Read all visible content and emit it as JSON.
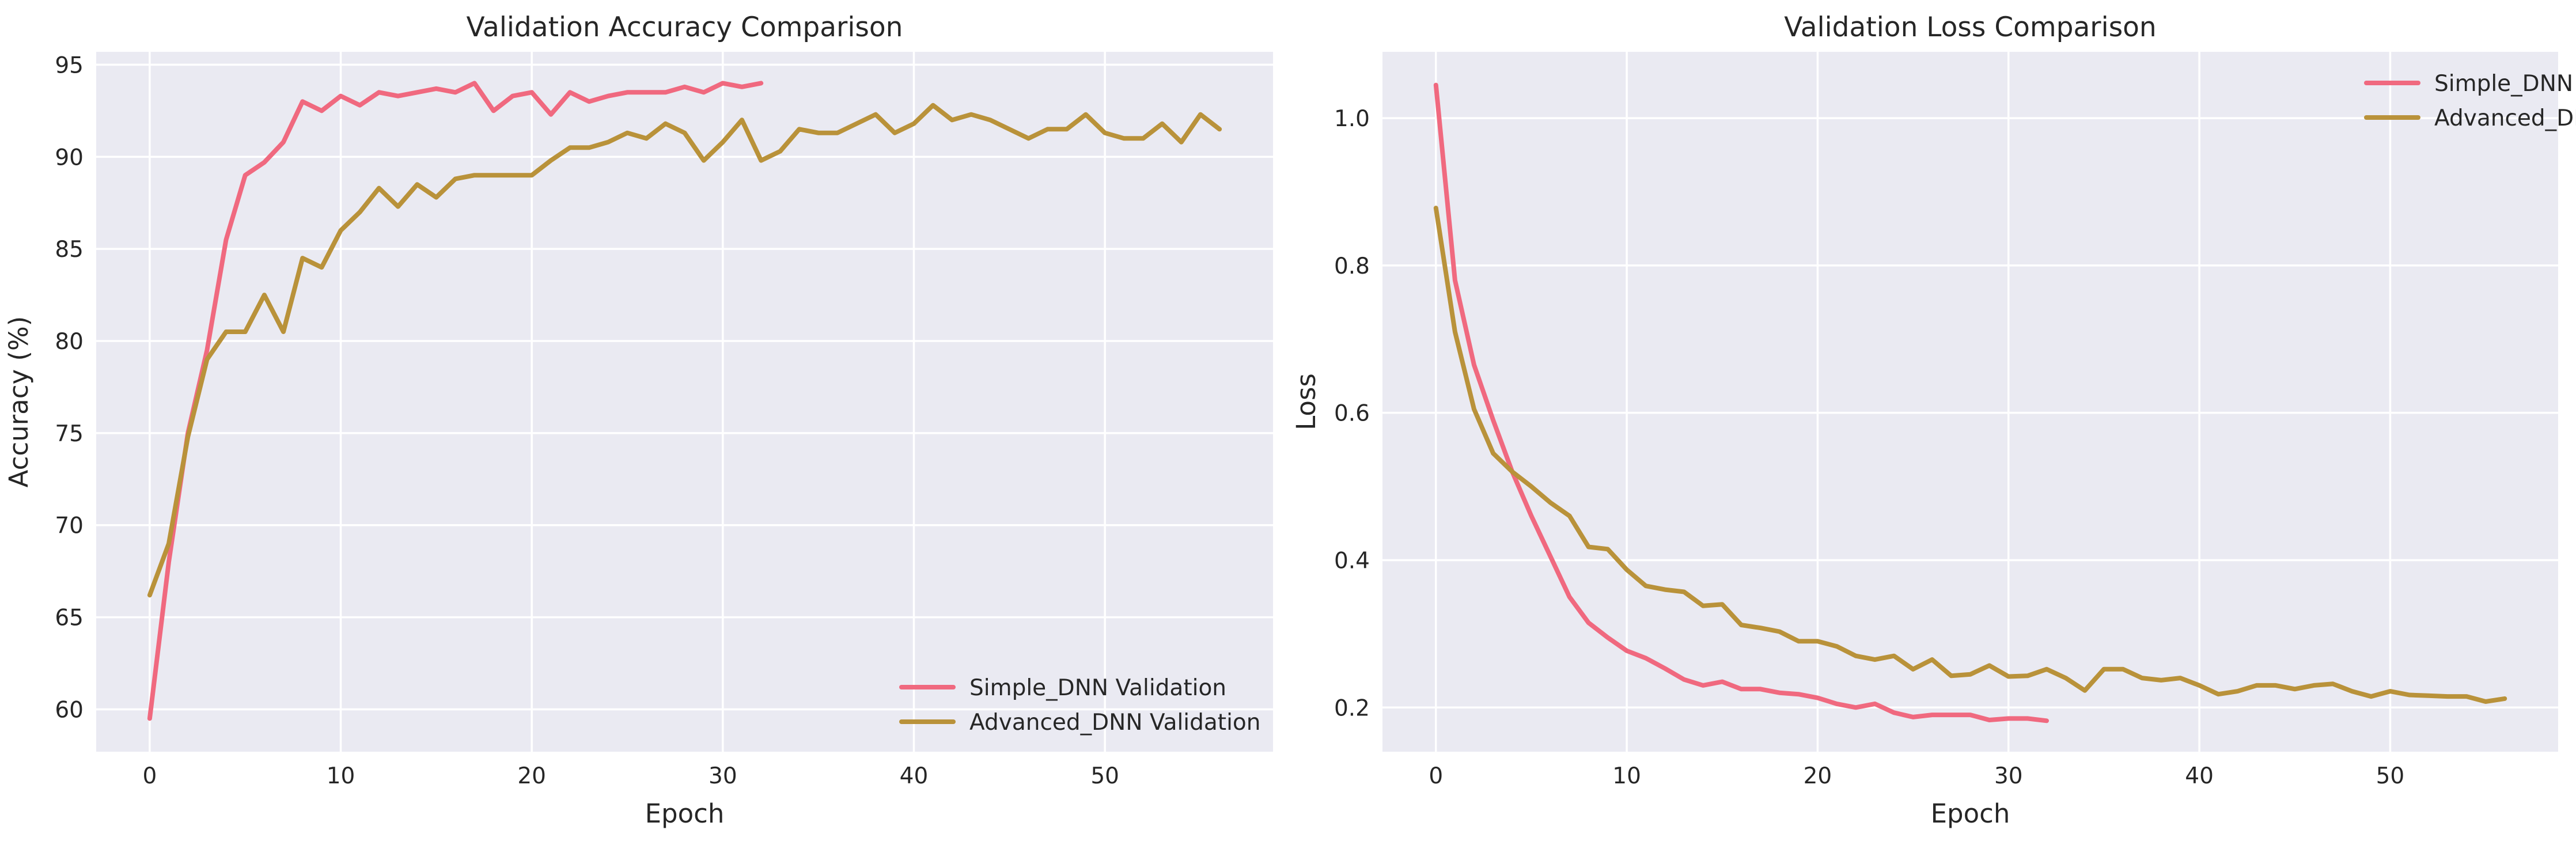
{
  "chart_data": [
    {
      "type": "line",
      "title": "Validation Accuracy Comparison",
      "xlabel": "Epoch",
      "ylabel": "Accuracy (%)",
      "xlim": [
        -2.8,
        58.8
      ],
      "ylim": [
        57.7,
        95.7
      ],
      "xticks": [
        0,
        10,
        20,
        30,
        40,
        50
      ],
      "yticks": [
        60,
        65,
        70,
        75,
        80,
        85,
        90,
        95
      ],
      "grid": true,
      "legend_position": "lower-right",
      "series": [
        {
          "name": "Simple_DNN Validation",
          "color": "#f0697f",
          "x": [
            0,
            1,
            2,
            3,
            4,
            5,
            6,
            7,
            8,
            9,
            10,
            11,
            12,
            13,
            14,
            15,
            16,
            17,
            18,
            19,
            20,
            21,
            22,
            23,
            24,
            25,
            26,
            27,
            28,
            29,
            30,
            31,
            32
          ],
          "y": [
            59.5,
            68.0,
            75.0,
            79.5,
            85.5,
            89.0,
            89.7,
            90.8,
            93.0,
            92.5,
            93.3,
            92.8,
            93.5,
            93.3,
            93.5,
            93.7,
            93.5,
            94.0,
            92.5,
            93.3,
            93.5,
            92.3,
            93.5,
            93.0,
            93.3,
            93.5,
            93.5,
            93.5,
            93.8,
            93.5,
            94.0,
            93.8,
            94.0
          ]
        },
        {
          "name": "Advanced_DNN Validation",
          "color": "#b9923a",
          "x": [
            0,
            1,
            2,
            3,
            4,
            5,
            6,
            7,
            8,
            9,
            10,
            11,
            12,
            13,
            14,
            15,
            16,
            17,
            18,
            19,
            20,
            21,
            22,
            23,
            24,
            25,
            26,
            27,
            28,
            29,
            30,
            31,
            32,
            33,
            34,
            35,
            36,
            37,
            38,
            39,
            40,
            41,
            42,
            43,
            44,
            45,
            46,
            47,
            48,
            49,
            50,
            51,
            52,
            53,
            54,
            55,
            56
          ],
          "y": [
            66.2,
            69.0,
            74.8,
            79.0,
            80.5,
            80.5,
            82.5,
            80.5,
            84.5,
            84.0,
            86.0,
            87.0,
            88.3,
            87.3,
            88.5,
            87.8,
            88.8,
            89.0,
            89.0,
            89.0,
            89.0,
            89.8,
            90.5,
            90.5,
            90.8,
            91.3,
            91.0,
            91.8,
            91.3,
            89.8,
            90.8,
            92.0,
            89.8,
            90.3,
            91.5,
            91.3,
            91.3,
            91.8,
            92.3,
            91.3,
            91.8,
            92.8,
            92.0,
            92.3,
            92.0,
            91.5,
            91.0,
            91.5,
            91.5,
            92.3,
            91.3,
            91.0,
            91.0,
            91.8,
            90.8,
            92.3,
            91.5
          ]
        }
      ]
    },
    {
      "type": "line",
      "title": "Validation Loss Comparison",
      "xlabel": "Epoch",
      "ylabel": "Loss",
      "xlim": [
        -2.8,
        58.8
      ],
      "ylim": [
        0.14,
        1.09
      ],
      "xticks": [
        0,
        10,
        20,
        30,
        40,
        50
      ],
      "yticks": [
        0.2,
        0.4,
        0.6,
        0.8,
        1.0
      ],
      "grid": true,
      "legend_position": "upper-right",
      "series": [
        {
          "name": "Simple_DNN Validation",
          "color": "#f0697f",
          "x": [
            0,
            1,
            2,
            3,
            4,
            5,
            6,
            7,
            8,
            9,
            10,
            11,
            12,
            13,
            14,
            15,
            16,
            17,
            18,
            19,
            20,
            21,
            22,
            23,
            24,
            25,
            26,
            27,
            28,
            29,
            30,
            31,
            32
          ],
          "y": [
            1.045,
            0.78,
            0.665,
            0.59,
            0.52,
            0.46,
            0.405,
            0.35,
            0.315,
            0.295,
            0.277,
            0.267,
            0.253,
            0.238,
            0.23,
            0.235,
            0.225,
            0.225,
            0.22,
            0.218,
            0.213,
            0.205,
            0.2,
            0.205,
            0.193,
            0.187,
            0.19,
            0.19,
            0.19,
            0.183,
            0.185,
            0.185,
            0.182
          ]
        },
        {
          "name": "Advanced_DNN Validation",
          "color": "#b9923a",
          "x": [
            0,
            1,
            2,
            3,
            4,
            5,
            6,
            7,
            8,
            9,
            10,
            11,
            12,
            13,
            14,
            15,
            16,
            17,
            18,
            19,
            20,
            21,
            22,
            23,
            24,
            25,
            26,
            27,
            28,
            29,
            30,
            31,
            32,
            33,
            34,
            35,
            36,
            37,
            38,
            39,
            40,
            41,
            42,
            43,
            44,
            45,
            46,
            47,
            48,
            49,
            50,
            51,
            52,
            53,
            54,
            55,
            56
          ],
          "y": [
            0.878,
            0.71,
            0.605,
            0.545,
            0.52,
            0.5,
            0.478,
            0.46,
            0.418,
            0.415,
            0.387,
            0.365,
            0.36,
            0.357,
            0.338,
            0.34,
            0.312,
            0.308,
            0.303,
            0.29,
            0.29,
            0.283,
            0.27,
            0.265,
            0.27,
            0.252,
            0.265,
            0.243,
            0.245,
            0.257,
            0.242,
            0.243,
            0.252,
            0.24,
            0.223,
            0.252,
            0.252,
            0.24,
            0.237,
            0.24,
            0.23,
            0.218,
            0.222,
            0.23,
            0.23,
            0.225,
            0.23,
            0.232,
            0.222,
            0.215,
            0.222,
            0.217,
            0.216,
            0.215,
            0.215,
            0.208,
            0.212
          ]
        }
      ]
    }
  ]
}
